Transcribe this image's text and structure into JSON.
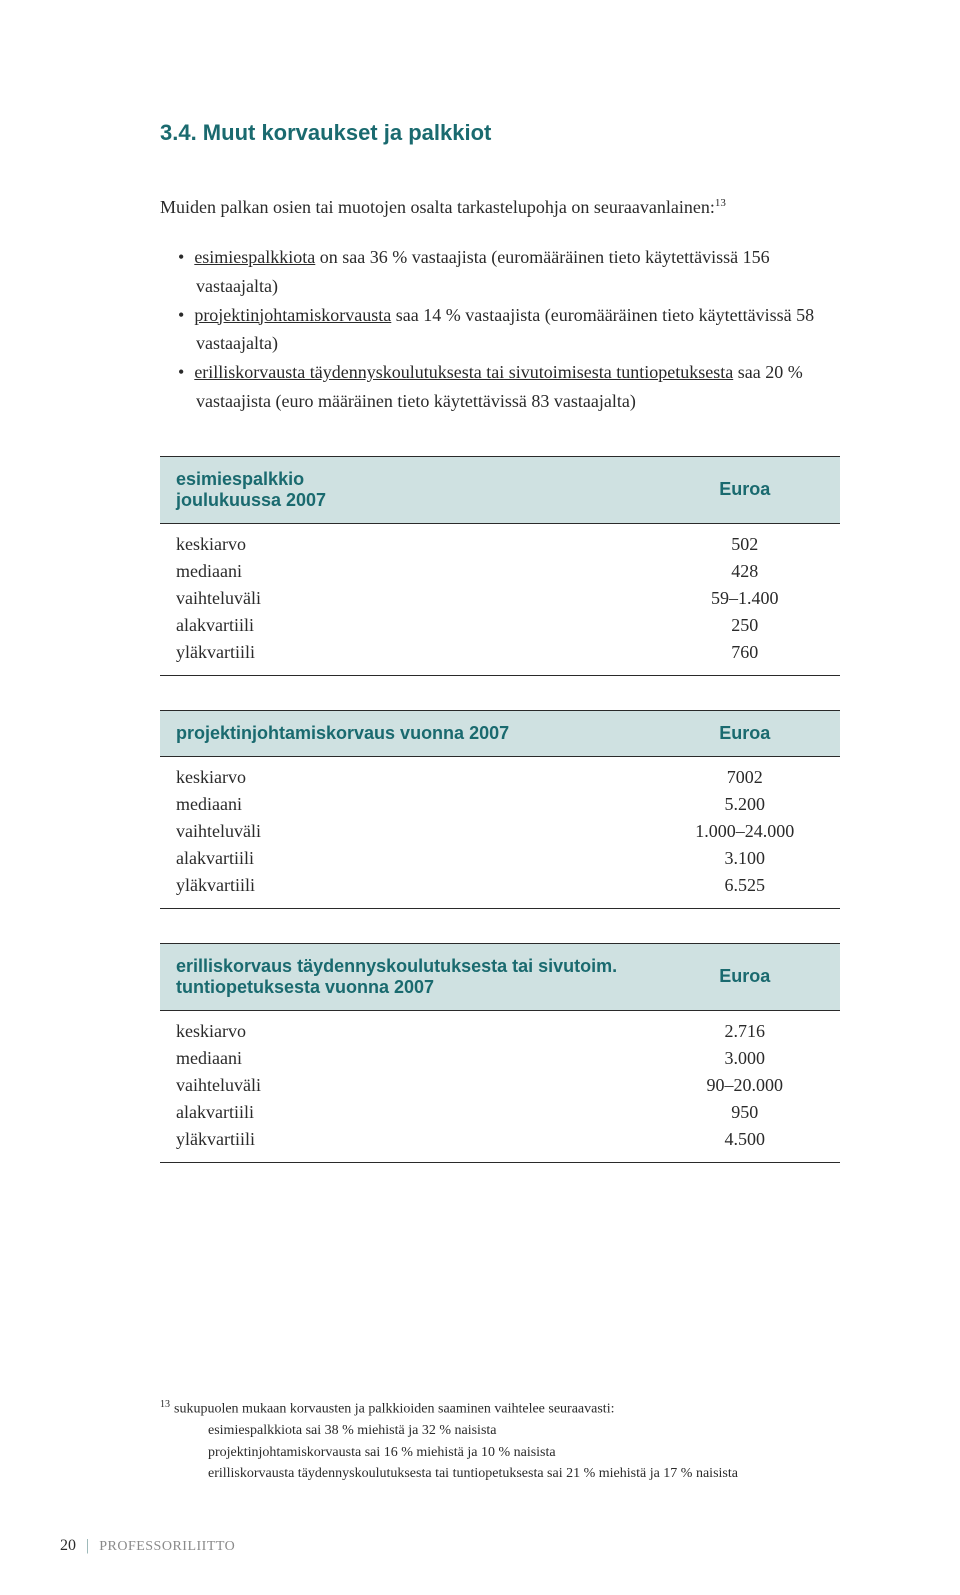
{
  "heading": "3.4. Muut korvaukset ja palkkiot",
  "intro_text": "Muiden palkan osien tai muotojen osalta tarkastelupohja on seuraavanlainen:",
  "intro_footnote_marker": "13",
  "bullets": [
    {
      "u": "esimiespalkkiota",
      "rest": " on saa 36 % vastaajista (euromääräinen tieto käytettävissä 156 vastaajalta)"
    },
    {
      "u": "projektinjohtamiskorvausta",
      "rest": " saa 14 % vastaajista (euromääräinen tieto käytettävissä 58 vastaajalta)"
    },
    {
      "u": "erilliskorvausta täydennyskoulutuksesta tai sivutoimisesta tuntiopetuksesta",
      "rest": " saa 20 % vastaajista (euro määräinen tieto käytettävissä 83 vastaajalta)"
    }
  ],
  "euroa_label": "Euroa",
  "row_labels": {
    "keskiarvo": "keskiarvo",
    "mediaani": "mediaani",
    "vaihteluvali": "vaihteluväli",
    "alakvartiili": "alakvartiili",
    "ylakvartiili": "yläkvartiili"
  },
  "tables": {
    "t1": {
      "title_l1": "esimiespalkkio",
      "title_l2": "joulukuussa 2007",
      "values": {
        "keskiarvo": "502",
        "mediaani": "428",
        "vaihteluvali": "59–1.400",
        "alakvartiili": "250",
        "ylakvartiili": "760"
      }
    },
    "t2": {
      "title": "projektinjohtamiskorvaus vuonna 2007",
      "values": {
        "keskiarvo": "7002",
        "mediaani": "5.200",
        "vaihteluvali": "1.000–24.000",
        "alakvartiili": "3.100",
        "ylakvartiili": "6.525"
      }
    },
    "t3": {
      "title_l1": "erilliskorvaus täydennyskoulutuksesta tai sivutoim.",
      "title_l2": "tuntiopetuksesta vuonna 2007",
      "values": {
        "keskiarvo": "2.716",
        "mediaani": "3.000",
        "vaihteluvali": "90–20.000",
        "alakvartiili": "950",
        "ylakvartiili": "4.500"
      }
    }
  },
  "footnote": {
    "marker": "13",
    "lead": "sukupuolen mukaan korvausten ja palkkioiden saaminen vaihtelee seuraavasti:",
    "lines": [
      "esimiespalkkiota sai 38 % miehistä ja 32 % naisista",
      "projektinjohtamiskorvausta sai 16 % miehistä ja 10 % naisista",
      "erilliskorvausta täydennyskoulutuksesta tai tuntiopetuksesta sai 21 % miehistä ja 17 % naisista"
    ]
  },
  "footer": {
    "page_number": "20",
    "org": "PROFESSORILIITTO"
  },
  "colors": {
    "accent": "#1a6a6f",
    "header_bg": "#cfe1e1",
    "rule": "#2a2a2a"
  }
}
